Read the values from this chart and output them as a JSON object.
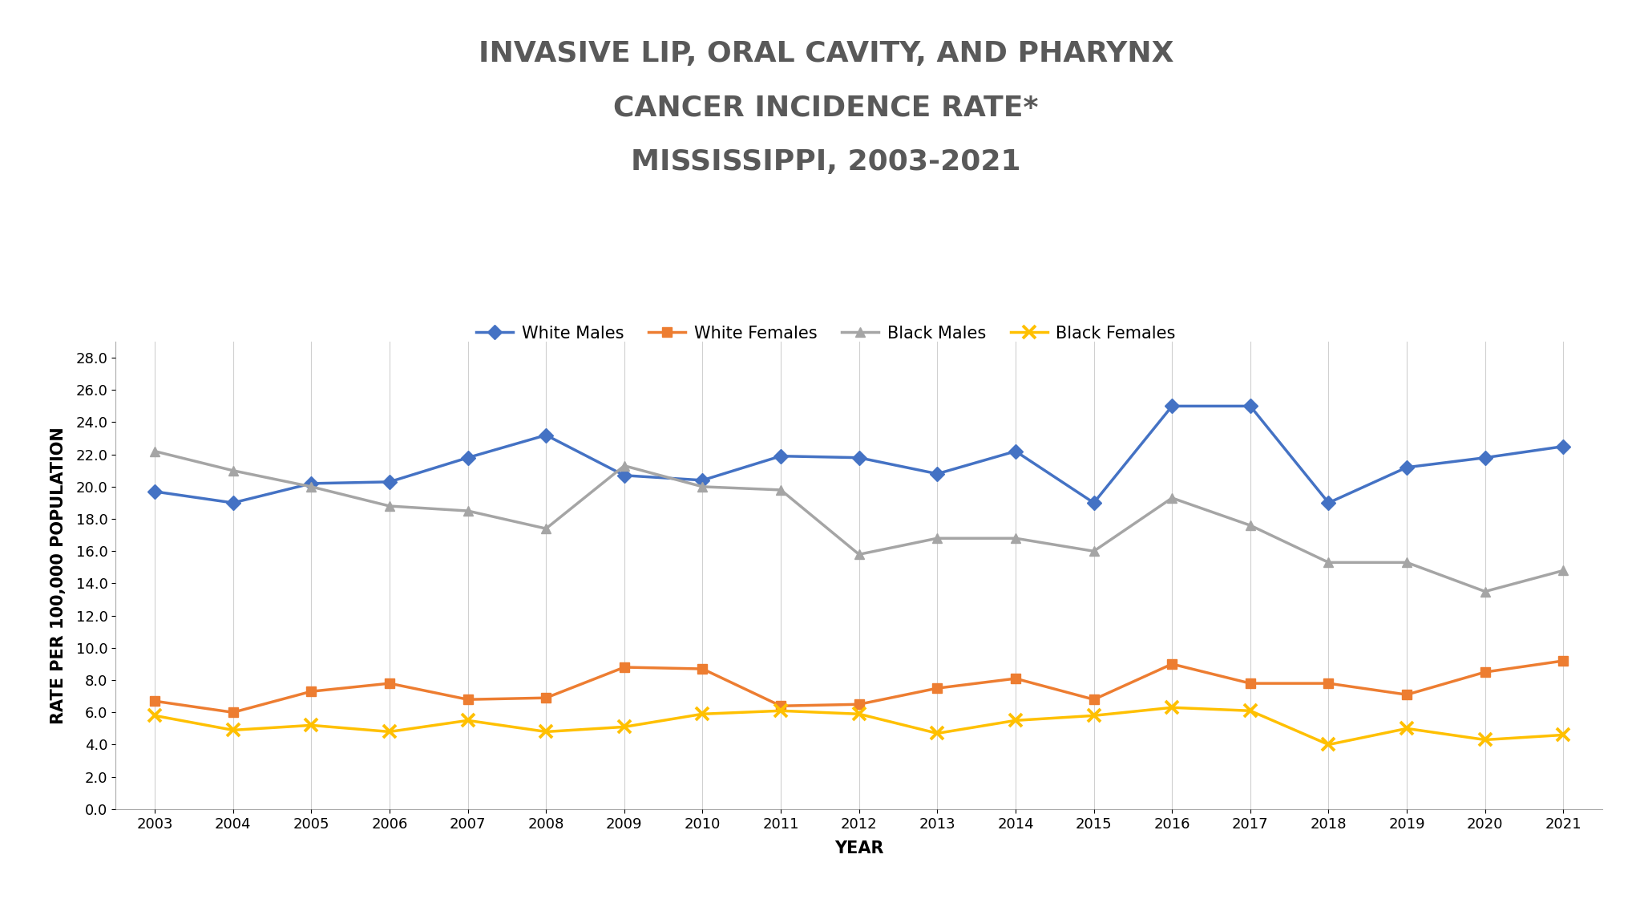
{
  "title_line1": "INVASIVE LIP, ORAL CAVITY, AND PHARYNX",
  "title_line2": "CANCER INCIDENCE RATE*",
  "title_line3": "MISSISSIPPI, 2003-2021",
  "xlabel": "YEAR",
  "ylabel": "RATE PER 100,000 POPULATION",
  "years": [
    2003,
    2004,
    2005,
    2006,
    2007,
    2008,
    2009,
    2010,
    2011,
    2012,
    2013,
    2014,
    2015,
    2016,
    2017,
    2018,
    2019,
    2020,
    2021
  ],
  "white_males": [
    19.7,
    19.0,
    20.2,
    20.3,
    21.8,
    23.2,
    20.7,
    20.4,
    21.9,
    21.8,
    20.8,
    22.2,
    19.0,
    25.0,
    25.0,
    19.0,
    21.2,
    21.8,
    22.5
  ],
  "white_females": [
    6.7,
    6.0,
    7.3,
    7.8,
    6.8,
    6.9,
    8.8,
    8.7,
    6.4,
    6.5,
    7.5,
    8.1,
    6.8,
    9.0,
    7.8,
    7.8,
    7.1,
    8.5,
    9.2
  ],
  "black_males": [
    22.2,
    21.0,
    20.0,
    18.8,
    18.5,
    17.4,
    21.3,
    20.0,
    19.8,
    15.8,
    16.8,
    16.8,
    16.0,
    19.3,
    17.6,
    15.3,
    15.3,
    13.5,
    14.8
  ],
  "black_females": [
    5.8,
    4.9,
    5.2,
    4.8,
    5.5,
    4.8,
    5.1,
    5.9,
    6.1,
    5.9,
    4.7,
    5.5,
    5.8,
    6.3,
    6.1,
    4.0,
    5.0,
    4.3,
    4.6
  ],
  "white_males_color": "#4472C4",
  "white_females_color": "#ED7D31",
  "black_males_color": "#A5A5A5",
  "black_females_color": "#FFC000",
  "ylim": [
    0.0,
    29.0
  ],
  "yticks": [
    0.0,
    2.0,
    4.0,
    6.0,
    8.0,
    10.0,
    12.0,
    14.0,
    16.0,
    18.0,
    20.0,
    22.0,
    24.0,
    26.0,
    28.0
  ],
  "background_color": "#FFFFFF",
  "plot_bg_color": "#FFFFFF",
  "grid_color": "#D0D0D0",
  "title_fontsize": 26,
  "axis_label_fontsize": 15,
  "tick_fontsize": 13,
  "legend_fontsize": 15,
  "line_width": 2.5,
  "marker_size": 9,
  "title_color": "#595959"
}
